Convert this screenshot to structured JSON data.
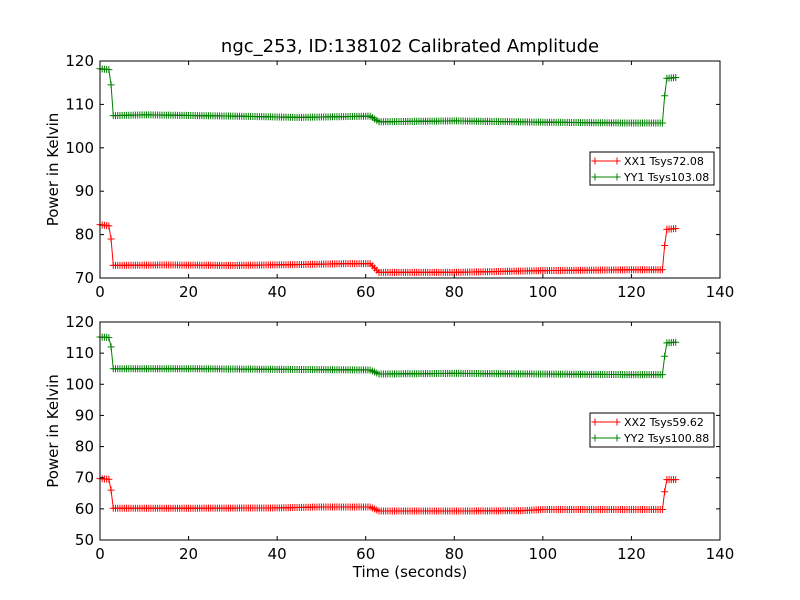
{
  "figure": {
    "title": "ngc_253, ID:138102 Calibrated Amplitude"
  },
  "chart_data": [
    {
      "type": "line",
      "title": "ngc_253, ID:138102 Calibrated Amplitude",
      "xlabel": "",
      "ylabel": "Power in Kelvin",
      "xlim": [
        0,
        140
      ],
      "ylim": [
        70,
        120
      ],
      "xticks": [
        0,
        20,
        40,
        60,
        80,
        100,
        120,
        140
      ],
      "yticks": [
        70,
        80,
        90,
        100,
        110,
        120
      ],
      "grid": false,
      "legend_position": "center-right",
      "marker": "plus",
      "series": [
        {
          "name": "XX1 Tsys72.08",
          "color": "#ff0000",
          "levels": [
            [
              0,
              82.3
            ],
            [
              2,
              82.0
            ],
            [
              2.5,
              79.0
            ],
            [
              3,
              72.9
            ],
            [
              15,
              73.0
            ],
            [
              30,
              72.9
            ],
            [
              45,
              73.1
            ],
            [
              55,
              73.3
            ],
            [
              61,
              73.3
            ],
            [
              63,
              71.3
            ],
            [
              80,
              71.3
            ],
            [
              100,
              71.7
            ],
            [
              120,
              71.9
            ],
            [
              127,
              71.9
            ],
            [
              127.5,
              77.5
            ],
            [
              128,
              81.2
            ],
            [
              130,
              81.4
            ]
          ]
        },
        {
          "name": "YY1 Tsys103.08",
          "color": "#008000",
          "levels": [
            [
              0,
              118.2
            ],
            [
              2,
              118.0
            ],
            [
              2.5,
              114.5
            ],
            [
              3,
              107.4
            ],
            [
              10,
              107.6
            ],
            [
              30,
              107.3
            ],
            [
              45,
              107.0
            ],
            [
              61,
              107.3
            ],
            [
              63,
              106.0
            ],
            [
              80,
              106.2
            ],
            [
              100,
              105.9
            ],
            [
              120,
              105.7
            ],
            [
              127,
              105.7
            ],
            [
              127.5,
              112.0
            ],
            [
              128,
              116.0
            ],
            [
              130,
              116.2
            ]
          ]
        }
      ]
    },
    {
      "type": "line",
      "title": "",
      "xlabel": "Time (seconds)",
      "ylabel": "Power in Kelvin",
      "xlim": [
        0,
        140
      ],
      "ylim": [
        50,
        120
      ],
      "xticks": [
        0,
        20,
        40,
        60,
        80,
        100,
        120,
        140
      ],
      "yticks": [
        50,
        60,
        70,
        80,
        90,
        100,
        110,
        120
      ],
      "grid": false,
      "legend_position": "center-right",
      "marker": "plus",
      "series": [
        {
          "name": "XX2 Tsys59.62",
          "color": "#ff0000",
          "levels": [
            [
              0,
              69.7
            ],
            [
              2,
              69.5
            ],
            [
              2.5,
              66.0
            ],
            [
              3,
              60.2
            ],
            [
              20,
              60.2
            ],
            [
              40,
              60.3
            ],
            [
              50,
              60.6
            ],
            [
              61,
              60.6
            ],
            [
              63,
              59.3
            ],
            [
              80,
              59.3
            ],
            [
              95,
              59.4
            ],
            [
              100,
              59.8
            ],
            [
              120,
              59.8
            ],
            [
              127,
              59.8
            ],
            [
              127.5,
              65.5
            ],
            [
              128,
              69.4
            ],
            [
              130,
              69.4
            ]
          ]
        },
        {
          "name": "YY2 Tsys100.88",
          "color": "#008000",
          "levels": [
            [
              0,
              115.2
            ],
            [
              2,
              115.0
            ],
            [
              2.5,
              112.0
            ],
            [
              3,
              105.0
            ],
            [
              20,
              105.0
            ],
            [
              40,
              104.8
            ],
            [
              61,
              104.6
            ],
            [
              63,
              103.3
            ],
            [
              80,
              103.5
            ],
            [
              100,
              103.3
            ],
            [
              120,
              103.1
            ],
            [
              127,
              103.1
            ],
            [
              127.5,
              109.0
            ],
            [
              128,
              113.3
            ],
            [
              130,
              113.5
            ]
          ]
        }
      ]
    }
  ]
}
